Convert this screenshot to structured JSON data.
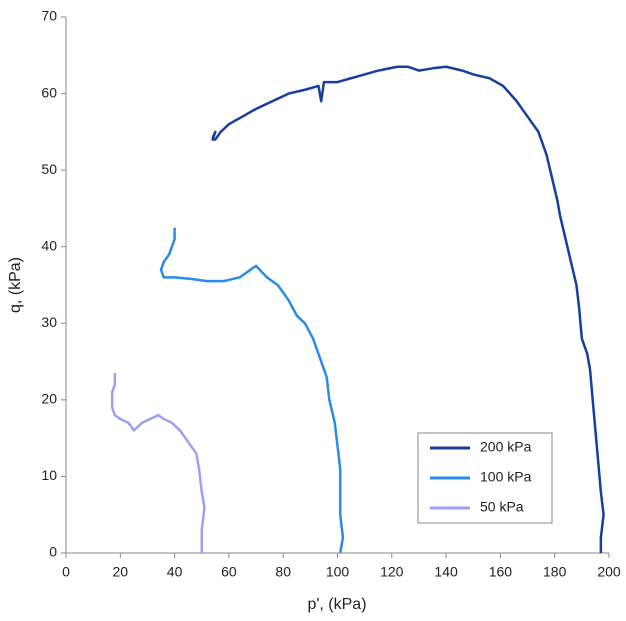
{
  "chart_data": {
    "type": "line",
    "xlabel": "p', (kPa)",
    "ylabel": "q, (kPa)",
    "xlim": [
      0,
      200
    ],
    "xticks": [
      0,
      20,
      40,
      60,
      80,
      100,
      120,
      140,
      160,
      180,
      200
    ],
    "ylim": [
      0,
      70
    ],
    "yticks": [
      0,
      10,
      20,
      30,
      40,
      50,
      60,
      70
    ],
    "legend": "lower right",
    "series": [
      {
        "name": "200 kPa",
        "color": "#173f9c",
        "x": [
          197,
          197,
          198,
          197,
          196,
          195,
          194,
          193,
          192,
          190,
          189,
          188,
          186,
          184,
          182,
          181,
          179,
          177,
          174,
          170,
          166,
          161,
          156,
          150,
          146,
          140,
          135,
          130,
          126,
          122,
          115,
          110,
          105,
          100,
          95,
          94,
          93,
          88,
          82,
          76,
          70,
          65,
          60,
          57,
          55,
          54,
          55,
          54
        ],
        "values": [
          0,
          2,
          5,
          8,
          12,
          16,
          20,
          24,
          26,
          28,
          32,
          35,
          38,
          41,
          44,
          46,
          49,
          52,
          55,
          57,
          59,
          61,
          62,
          62.5,
          63,
          63.5,
          63.3,
          63,
          63.5,
          63.5,
          63,
          62.5,
          62,
          61.5,
          61.5,
          59,
          61,
          60.5,
          60,
          59,
          58,
          57,
          56,
          55,
          54,
          54,
          55,
          54.2
        ]
      },
      {
        "name": "100 kPa",
        "color": "#2b8be8",
        "x": [
          101,
          102,
          101,
          101,
          101,
          100,
          99,
          97,
          96,
          94,
          91,
          88,
          85,
          82,
          78,
          74,
          70,
          68,
          64,
          58,
          52,
          46,
          40,
          36,
          35,
          36,
          38,
          39,
          40,
          40
        ],
        "values": [
          0,
          2,
          5,
          8,
          11,
          14,
          17,
          20,
          23,
          25,
          28,
          30,
          31,
          33,
          35,
          36,
          37.5,
          37,
          36,
          35.5,
          35.5,
          35.8,
          36,
          36,
          37,
          38,
          39,
          40,
          41,
          42.5
        ]
      },
      {
        "name": "50 kPa",
        "color": "#9f9ff5",
        "x": [
          50,
          50,
          51,
          50,
          49,
          48,
          46,
          44,
          42,
          39,
          36,
          34,
          31,
          28,
          25,
          23,
          20,
          18,
          17,
          17,
          18,
          18
        ],
        "values": [
          0,
          3,
          6,
          8,
          11,
          13,
          14,
          15,
          16,
          17,
          17.5,
          18,
          17.5,
          17,
          16,
          17,
          17.5,
          18,
          19,
          21,
          22,
          23.5
        ]
      }
    ]
  }
}
